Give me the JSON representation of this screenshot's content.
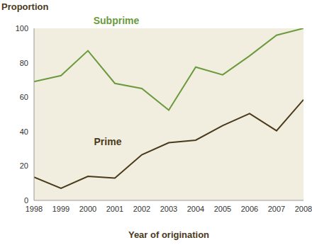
{
  "chart_data": {
    "type": "line",
    "y_label": "Proportion",
    "x_label": "Year of origination",
    "x": [
      1998,
      1999,
      2000,
      2001,
      2002,
      2003,
      2004,
      2005,
      2006,
      2007,
      2008
    ],
    "xlim": [
      1998,
      2008
    ],
    "xticks": [
      1998,
      1999,
      2000,
      2001,
      2002,
      2003,
      2004,
      2005,
      2006,
      2007,
      2008
    ],
    "ylim": [
      0,
      100
    ],
    "yticks": [
      0,
      20,
      40,
      60,
      80,
      100
    ],
    "grid": false,
    "series": [
      {
        "name": "Subprime",
        "color": "#6b9a3e",
        "values": [
          69,
          72.5,
          87,
          68,
          65,
          52.5,
          77.5,
          73,
          84,
          96,
          100
        ]
      },
      {
        "name": "Prime",
        "color": "#4a3a1c",
        "values": [
          13.5,
          7,
          14,
          13,
          26.5,
          33.5,
          35,
          43.5,
          50.5,
          40.5,
          58.5
        ]
      }
    ]
  }
}
